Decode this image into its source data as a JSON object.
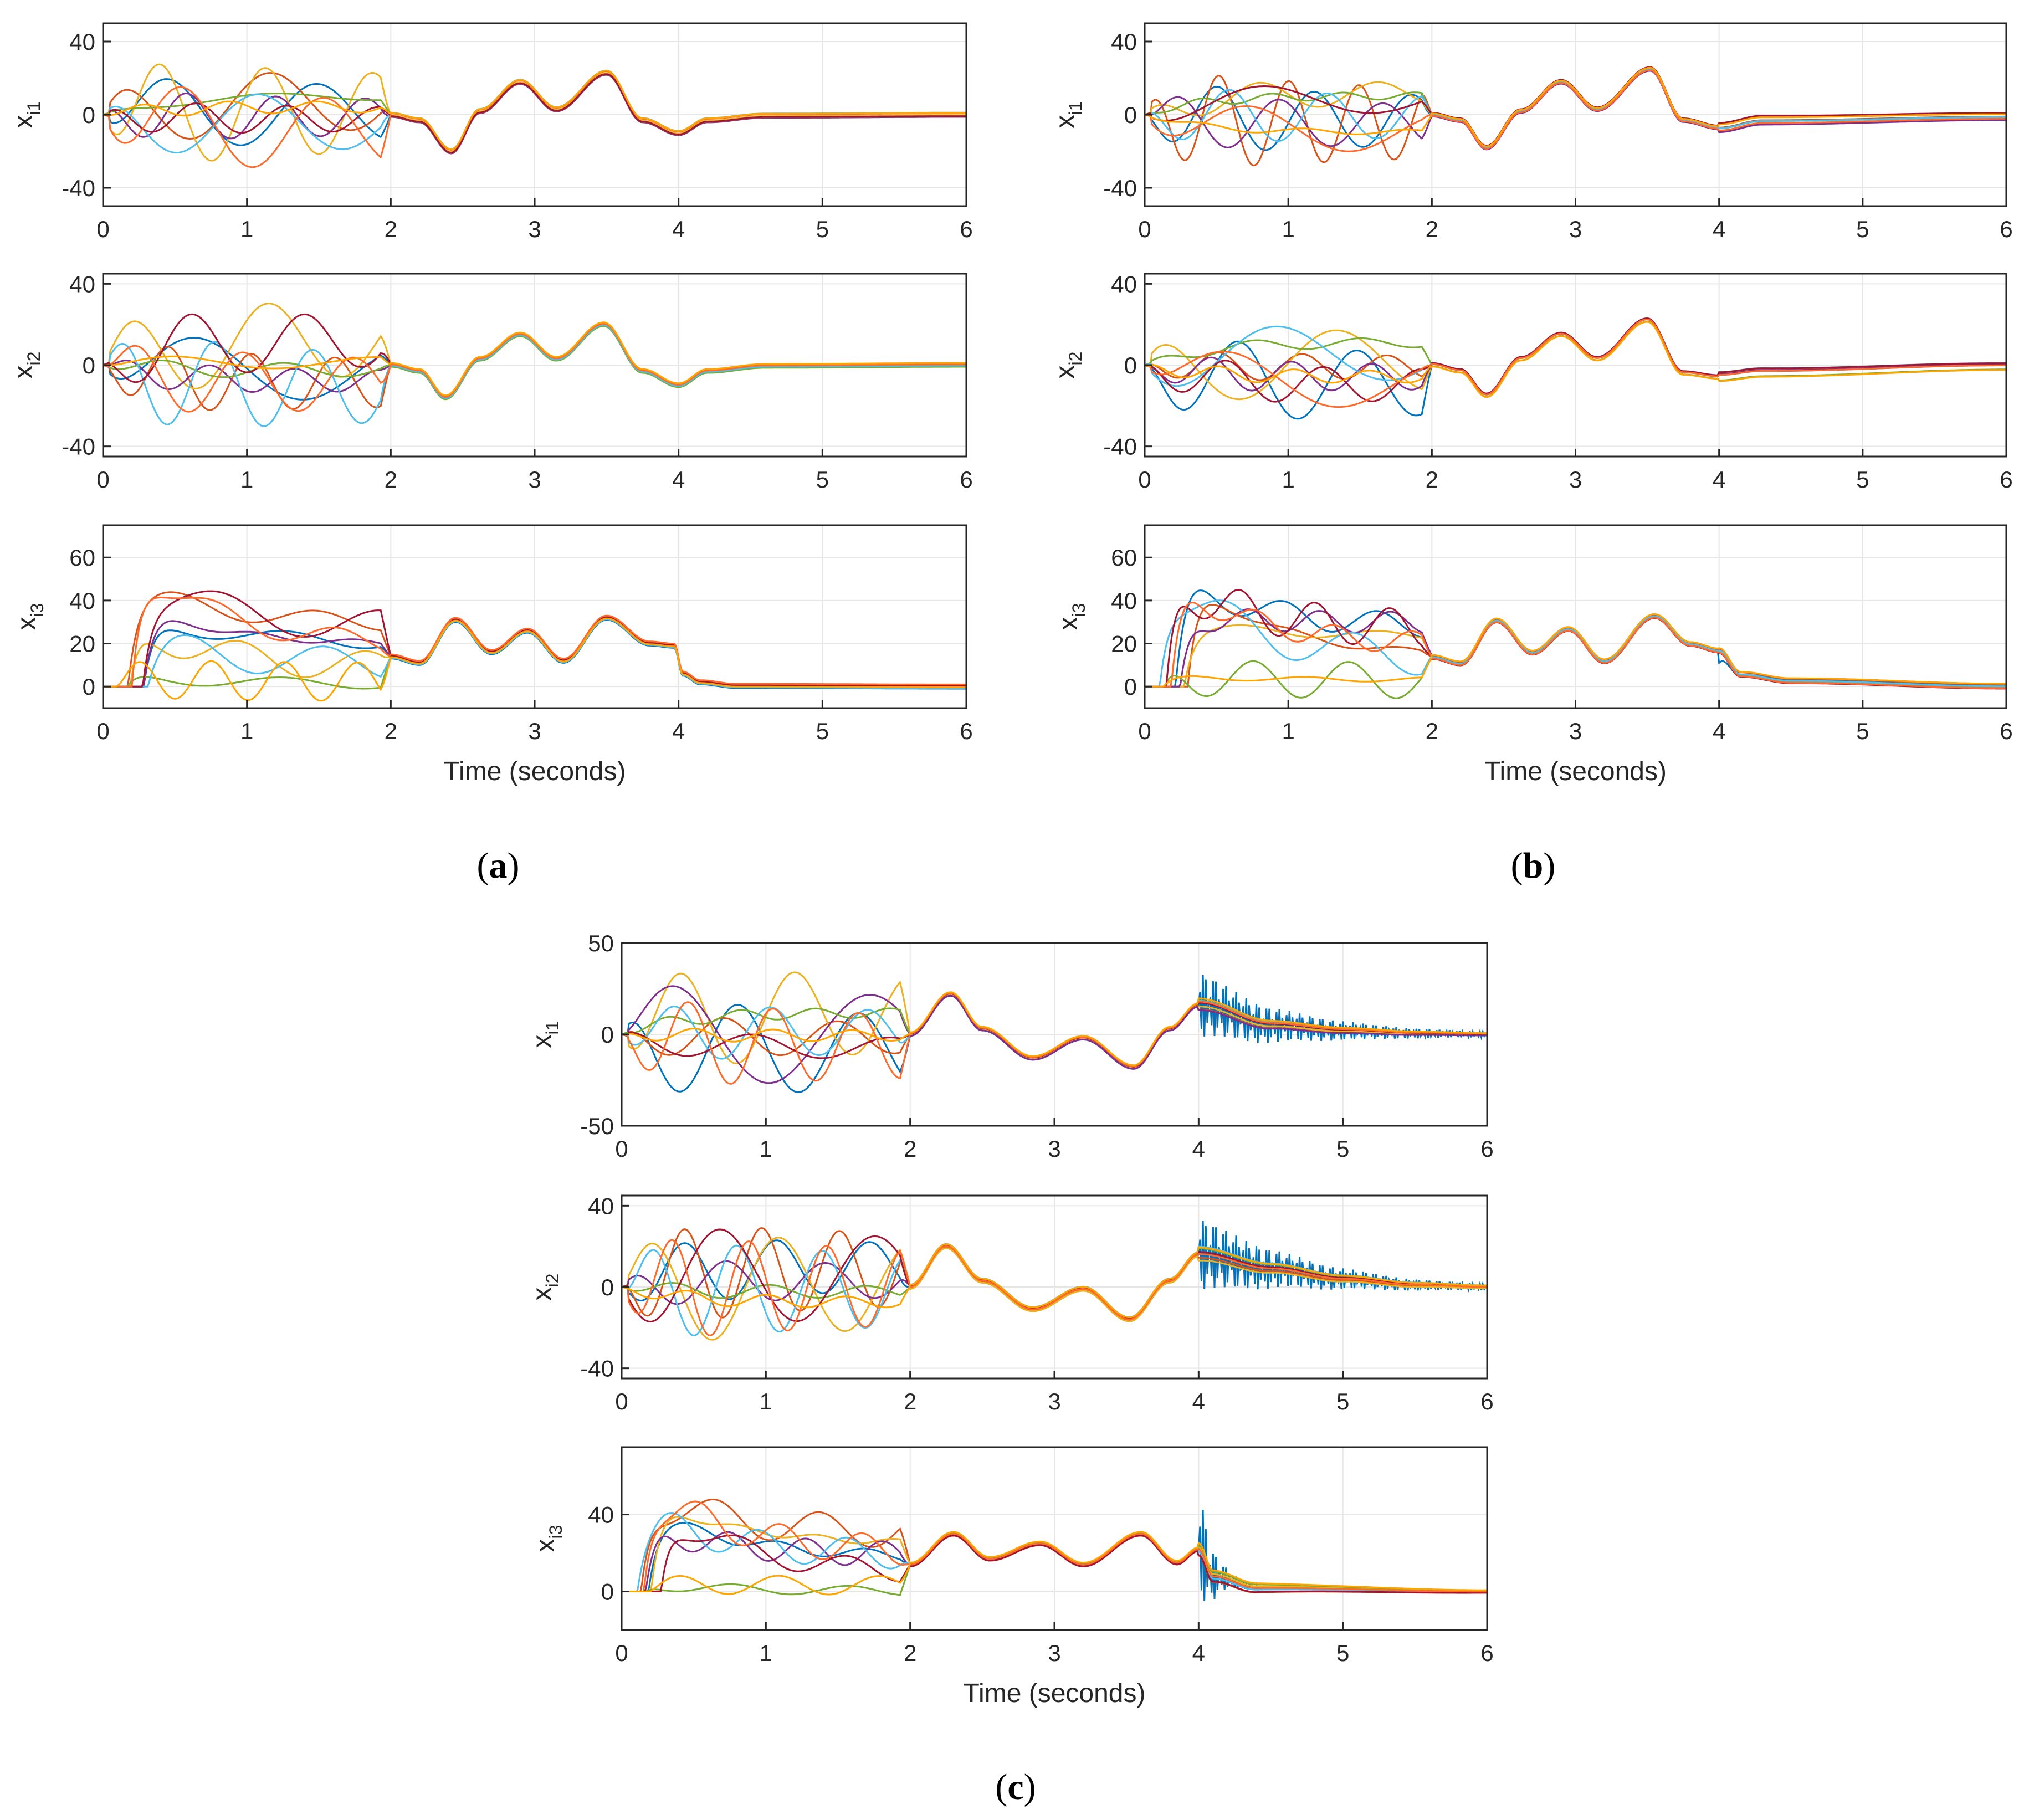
{
  "figure": {
    "colors": [
      "#0072BD",
      "#D95319",
      "#EDB120",
      "#7E2F8E",
      "#77AC30",
      "#4DBEEE",
      "#A2142F",
      "#FF6A2B",
      "#FFA500"
    ],
    "panels": [
      {
        "id": "a",
        "caption_open": "(",
        "caption_letter": "a",
        "caption_close": ")",
        "xlabel": "Time (seconds)"
      },
      {
        "id": "b",
        "caption_open": "(",
        "caption_letter": "b",
        "caption_close": ")",
        "xlabel": "Time (seconds)"
      },
      {
        "id": "c",
        "caption_open": "(",
        "caption_letter": "c",
        "caption_close": ")",
        "xlabel": "Time (seconds)"
      }
    ]
  },
  "chart_data": [
    {
      "panel": "a",
      "type": "line",
      "title": "",
      "ylabel_main": "x",
      "ylabel_sub": "i1",
      "xlabel": "",
      "xlim": [
        0,
        6
      ],
      "ylim": [
        -50,
        50
      ],
      "xticks": [
        "0",
        "1",
        "2",
        "3",
        "4",
        "5",
        "6"
      ],
      "yticks": [
        {
          "v": 40,
          "t": "40"
        },
        {
          "v": 0,
          "t": "0"
        },
        {
          "v": -40,
          "t": "-40"
        }
      ],
      "grid": true,
      "legend": "none",
      "profile": "x1",
      "late": "smooth",
      "consensus_keypoints": [
        [
          2,
          0
        ],
        [
          2.2,
          -3
        ],
        [
          2.42,
          -20
        ],
        [
          2.62,
          2
        ],
        [
          2.9,
          18
        ],
        [
          3.15,
          3
        ],
        [
          3.5,
          23
        ],
        [
          3.75,
          -3
        ],
        [
          4,
          -10
        ],
        [
          4.2,
          -3
        ],
        [
          4.6,
          -0.5
        ],
        [
          6,
          0
        ]
      ]
    },
    {
      "panel": "a",
      "type": "line",
      "title": "",
      "ylabel_main": "x",
      "ylabel_sub": "i2",
      "xlabel": "",
      "xlim": [
        0,
        6
      ],
      "ylim": [
        -45,
        45
      ],
      "xticks": [
        "0",
        "1",
        "2",
        "3",
        "4",
        "5",
        "6"
      ],
      "yticks": [
        {
          "v": 40,
          "t": "40"
        },
        {
          "v": 0,
          "t": "0"
        },
        {
          "v": -40,
          "t": "-40"
        }
      ],
      "grid": true,
      "legend": "none",
      "profile": "x2",
      "late": "smooth",
      "consensus_keypoints": [
        [
          2,
          0
        ],
        [
          2.2,
          -3
        ],
        [
          2.38,
          -16
        ],
        [
          2.62,
          3
        ],
        [
          2.9,
          15
        ],
        [
          3.15,
          3
        ],
        [
          3.48,
          20
        ],
        [
          3.75,
          -3
        ],
        [
          4,
          -10
        ],
        [
          4.2,
          -3
        ],
        [
          4.6,
          -0.5
        ],
        [
          6,
          0
        ]
      ]
    },
    {
      "panel": "a",
      "type": "line",
      "title": "",
      "ylabel_main": "x",
      "ylabel_sub": "i3",
      "xlabel": "Time (seconds)",
      "xlim": [
        0,
        6
      ],
      "ylim": [
        -10,
        75
      ],
      "xticks": [
        "0",
        "1",
        "2",
        "3",
        "4",
        "5",
        "6"
      ],
      "yticks": [
        {
          "v": 60,
          "t": "60"
        },
        {
          "v": 40,
          "t": "40"
        },
        {
          "v": 20,
          "t": "20"
        },
        {
          "v": 0,
          "t": "0"
        }
      ],
      "grid": true,
      "legend": "none",
      "profile": "x3",
      "late": "smooth",
      "consensus_keypoints": [
        [
          2,
          14
        ],
        [
          2.2,
          11
        ],
        [
          2.45,
          31
        ],
        [
          2.7,
          16
        ],
        [
          2.95,
          26
        ],
        [
          3.2,
          12
        ],
        [
          3.5,
          32
        ],
        [
          3.8,
          20
        ],
        [
          3.97,
          19
        ],
        [
          4.03,
          6
        ],
        [
          4.15,
          2
        ],
        [
          4.4,
          0.3
        ],
        [
          6,
          0
        ]
      ]
    },
    {
      "panel": "b",
      "type": "line",
      "title": "",
      "ylabel_main": "x",
      "ylabel_sub": "i1",
      "xlabel": "",
      "xlim": [
        0,
        6
      ],
      "ylim": [
        -50,
        50
      ],
      "xticks": [
        "0",
        "1",
        "2",
        "3",
        "4",
        "5",
        "6"
      ],
      "yticks": [
        {
          "v": 40,
          "t": "40"
        },
        {
          "v": 0,
          "t": "0"
        },
        {
          "v": -40,
          "t": "-40"
        }
      ],
      "grid": true,
      "legend": "none",
      "profile": "x1",
      "late": "band",
      "consensus_keypoints": [
        [
          2,
          0
        ],
        [
          2.2,
          -3
        ],
        [
          2.38,
          -18
        ],
        [
          2.62,
          2
        ],
        [
          2.9,
          18
        ],
        [
          3.15,
          3
        ],
        [
          3.52,
          25
        ],
        [
          3.75,
          -3
        ],
        [
          4,
          -7
        ],
        [
          4.3,
          -3
        ],
        [
          6,
          -1
        ]
      ]
    },
    {
      "panel": "b",
      "type": "line",
      "title": "",
      "ylabel_main": "x",
      "ylabel_sub": "i2",
      "xlabel": "",
      "xlim": [
        0,
        6
      ],
      "ylim": [
        -45,
        45
      ],
      "xticks": [
        "0",
        "1",
        "2",
        "3",
        "4",
        "5",
        "6"
      ],
      "yticks": [
        {
          "v": 40,
          "t": "40"
        },
        {
          "v": 0,
          "t": "0"
        },
        {
          "v": -40,
          "t": "-40"
        }
      ],
      "grid": true,
      "legend": "none",
      "profile": "x2",
      "late": "band",
      "consensus_keypoints": [
        [
          2,
          0
        ],
        [
          2.2,
          -3
        ],
        [
          2.38,
          -15
        ],
        [
          2.62,
          3
        ],
        [
          2.9,
          15
        ],
        [
          3.15,
          3
        ],
        [
          3.5,
          22
        ],
        [
          3.75,
          -4
        ],
        [
          4,
          -6
        ],
        [
          4.3,
          -4
        ],
        [
          6,
          -1
        ]
      ]
    },
    {
      "panel": "b",
      "type": "line",
      "title": "",
      "ylabel_main": "x",
      "ylabel_sub": "i3",
      "xlabel": "Time (seconds)",
      "xlim": [
        0,
        6
      ],
      "ylim": [
        -10,
        75
      ],
      "xticks": [
        "0",
        "1",
        "2",
        "3",
        "4",
        "5",
        "6"
      ],
      "yticks": [
        {
          "v": 60,
          "t": "60"
        },
        {
          "v": 40,
          "t": "40"
        },
        {
          "v": 20,
          "t": "20"
        },
        {
          "v": 0,
          "t": "0"
        }
      ],
      "grid": true,
      "legend": "none",
      "profile": "x3",
      "late": "band3",
      "consensus_keypoints": [
        [
          2,
          14
        ],
        [
          2.2,
          11
        ],
        [
          2.45,
          31
        ],
        [
          2.7,
          16
        ],
        [
          2.95,
          27
        ],
        [
          3.2,
          12
        ],
        [
          3.55,
          33
        ],
        [
          3.8,
          20
        ],
        [
          4,
          17
        ],
        [
          4.15,
          6
        ],
        [
          4.5,
          3
        ],
        [
          6,
          0.5
        ]
      ]
    },
    {
      "panel": "c",
      "type": "line",
      "title": "",
      "ylabel_main": "x",
      "ylabel_sub": "i1",
      "xlabel": "",
      "xlim": [
        0,
        6
      ],
      "ylim": [
        -50,
        50
      ],
      "xticks": [
        "0",
        "1",
        "2",
        "3",
        "4",
        "5",
        "6"
      ],
      "yticks": [
        {
          "v": 50,
          "t": "50"
        },
        {
          "v": 0,
          "t": "0"
        },
        {
          "v": -50,
          "t": "-50"
        }
      ],
      "grid": true,
      "legend": "none",
      "profile": "x1",
      "late": "osc",
      "consensus_keypoints": [
        [
          2,
          0
        ],
        [
          2.28,
          22
        ],
        [
          2.5,
          3
        ],
        [
          2.85,
          -13
        ],
        [
          3.2,
          -2
        ],
        [
          3.55,
          -18
        ],
        [
          3.8,
          3
        ],
        [
          4,
          16
        ],
        [
          4.5,
          5
        ],
        [
          5,
          2
        ],
        [
          5.5,
          0.5
        ],
        [
          6,
          0
        ]
      ]
    },
    {
      "panel": "c",
      "type": "line",
      "title": "",
      "ylabel_main": "x",
      "ylabel_sub": "i2",
      "xlabel": "",
      "xlim": [
        0,
        6
      ],
      "ylim": [
        -45,
        45
      ],
      "xticks": [
        "0",
        "1",
        "2",
        "3",
        "4",
        "5",
        "6"
      ],
      "yticks": [
        {
          "v": 40,
          "t": "40"
        },
        {
          "v": 0,
          "t": "0"
        },
        {
          "v": -40,
          "t": "-40"
        }
      ],
      "grid": true,
      "legend": "none",
      "profile": "x2",
      "late": "osc",
      "consensus_keypoints": [
        [
          2,
          0
        ],
        [
          2.25,
          20
        ],
        [
          2.5,
          3
        ],
        [
          2.85,
          -11
        ],
        [
          3.2,
          -1
        ],
        [
          3.52,
          -16
        ],
        [
          3.8,
          3
        ],
        [
          4,
          16
        ],
        [
          4.5,
          9
        ],
        [
          5,
          4
        ],
        [
          5.5,
          1
        ],
        [
          6,
          0
        ]
      ]
    },
    {
      "panel": "c",
      "type": "line",
      "title": "",
      "ylabel_main": "x",
      "ylabel_sub": "i3",
      "xlabel": "Time (seconds)",
      "xlim": [
        0,
        6
      ],
      "ylim": [
        -20,
        75
      ],
      "xticks": [
        "0",
        "1",
        "2",
        "3",
        "4",
        "5",
        "6"
      ],
      "yticks": [
        {
          "v": 40,
          "t": "40"
        },
        {
          "v": 0,
          "t": "0"
        }
      ],
      "grid": true,
      "legend": "none",
      "profile": "x3",
      "late": "osc3",
      "consensus_keypoints": [
        [
          2,
          14
        ],
        [
          2.3,
          30
        ],
        [
          2.55,
          17
        ],
        [
          2.9,
          25
        ],
        [
          3.2,
          14
        ],
        [
          3.6,
          30
        ],
        [
          3.85,
          15
        ],
        [
          4,
          22
        ],
        [
          4.1,
          8
        ],
        [
          4.4,
          2
        ],
        [
          6,
          0
        ]
      ]
    }
  ]
}
